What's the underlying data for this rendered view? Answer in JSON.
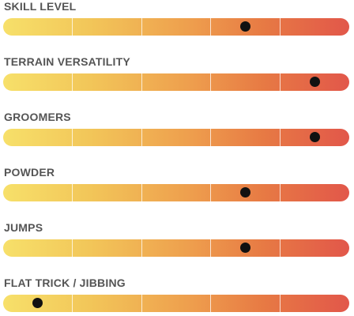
{
  "ratings": [
    {
      "label": "SKILL LEVEL",
      "value": 0.7
    },
    {
      "label": "TERRAIN VERSATILITY",
      "value": 0.9
    },
    {
      "label": "GROOMERS",
      "value": 0.9
    },
    {
      "label": "POWDER",
      "value": 0.7
    },
    {
      "label": "JUMPS",
      "value": 0.7
    },
    {
      "label": "FLAT TRICK / JIBBING",
      "value": 0.1
    }
  ],
  "segments": 5,
  "colors": {
    "gradient_start": "#f7e06a",
    "gradient_end": "#e2574a",
    "dot": "#111111",
    "label": "#555555"
  }
}
